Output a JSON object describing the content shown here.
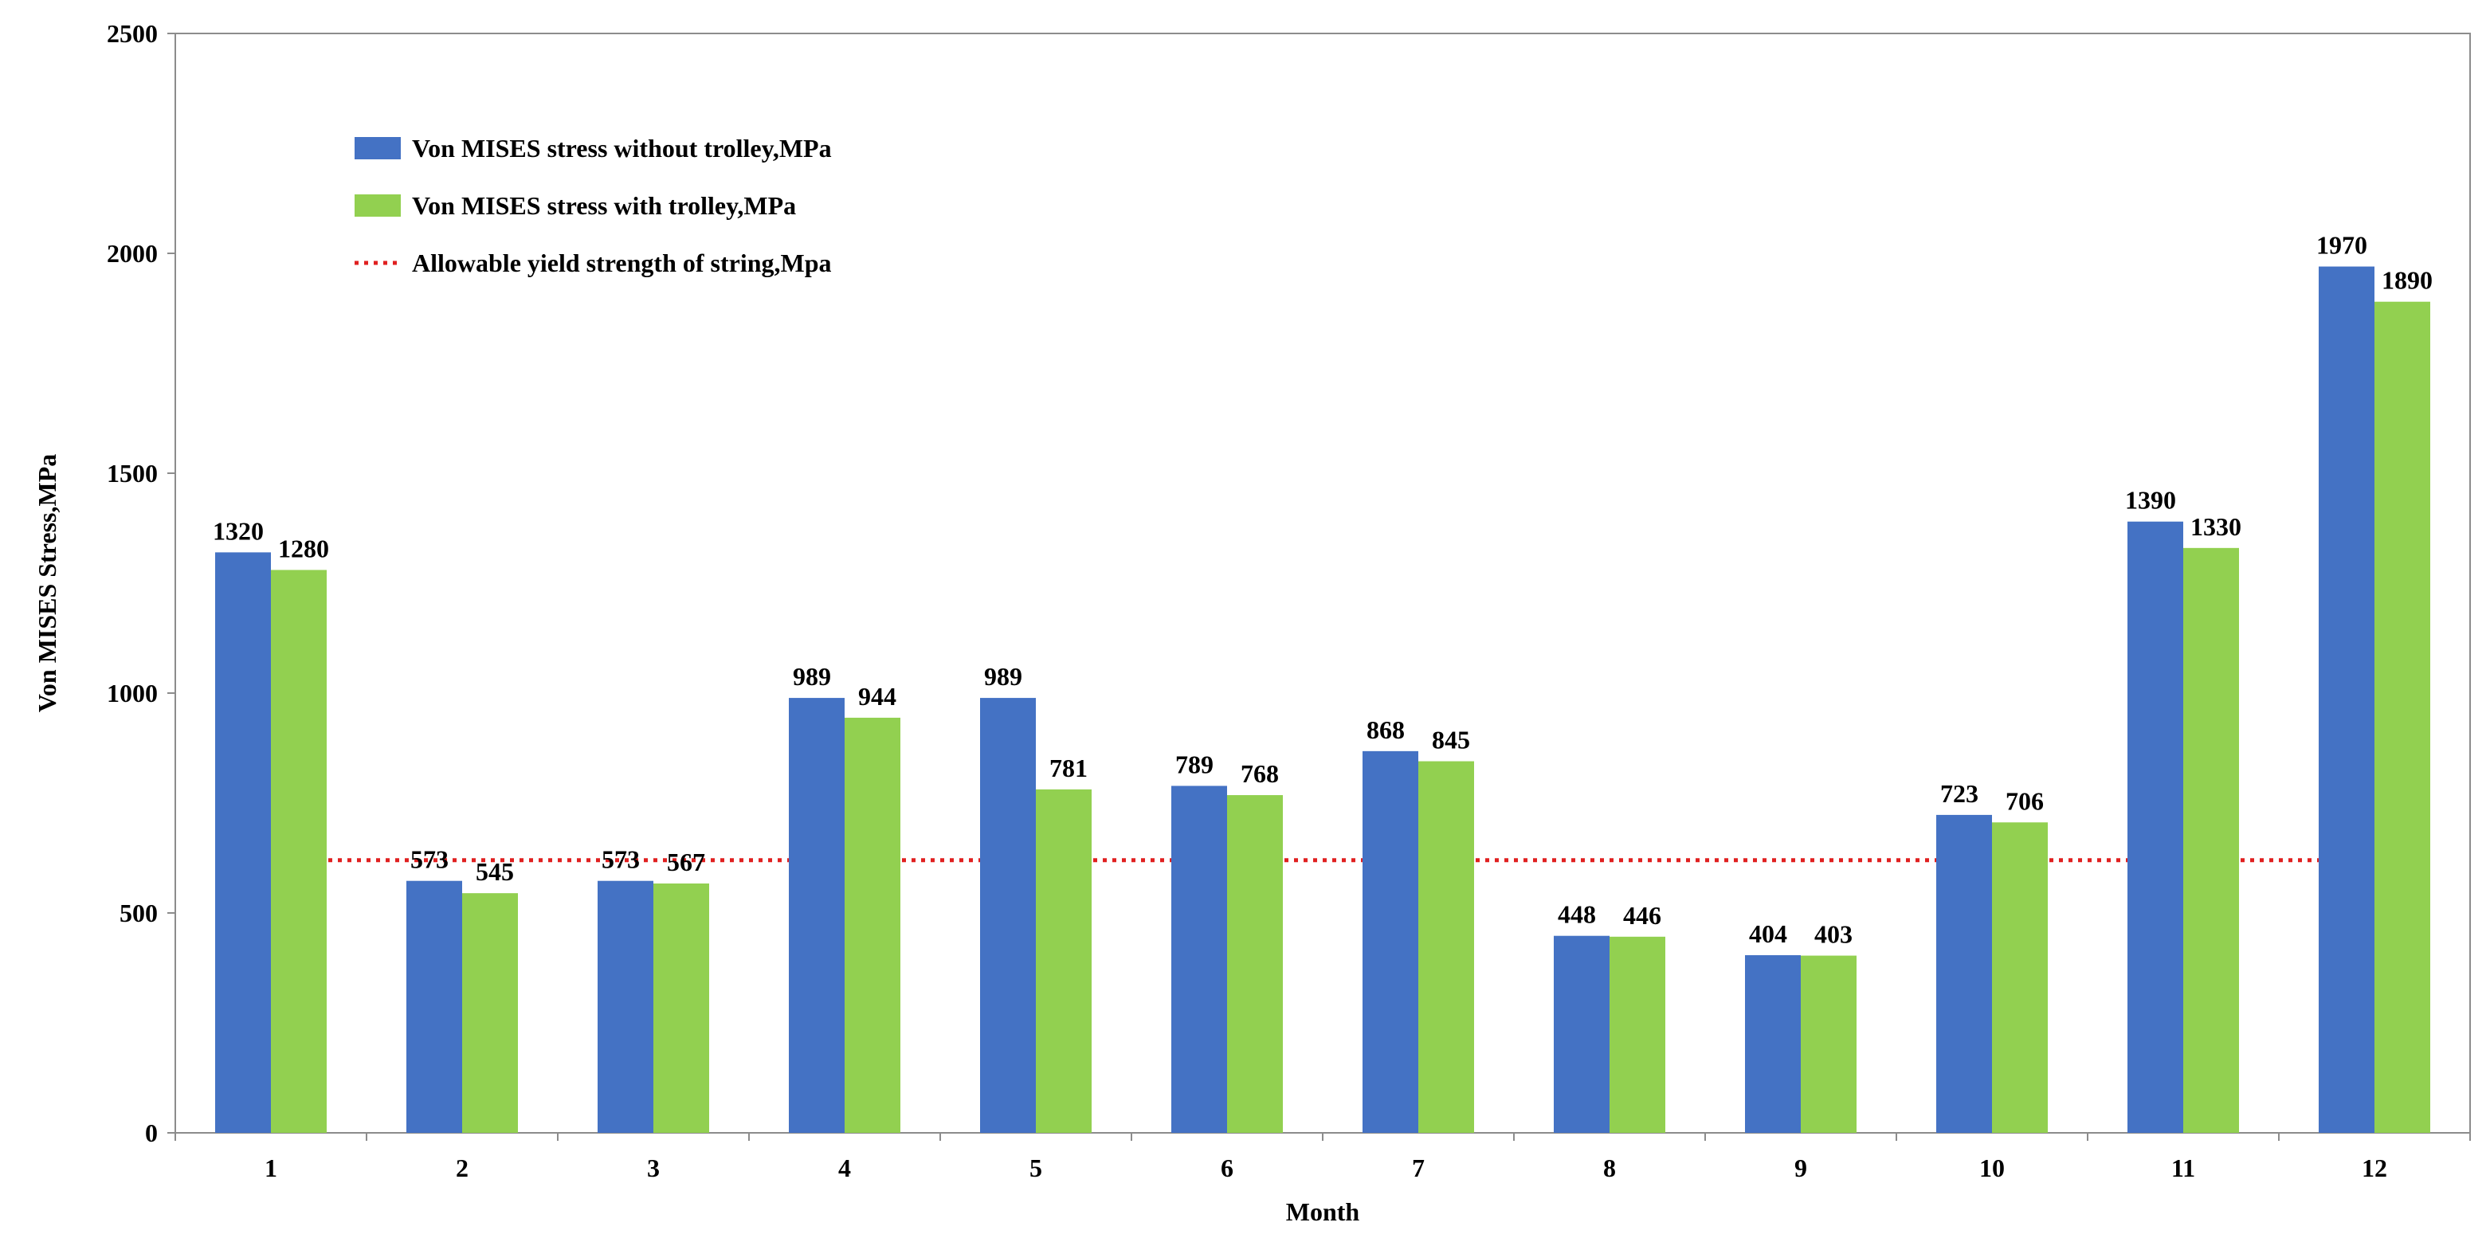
{
  "chart_data": {
    "type": "bar",
    "categories": [
      "1",
      "2",
      "3",
      "4",
      "5",
      "6",
      "7",
      "8",
      "9",
      "10",
      "11",
      "12"
    ],
    "series": [
      {
        "name": "Von MISES stress without trolley,MPa",
        "color": "#4472C4",
        "values": [
          1320,
          573,
          573,
          989,
          989,
          789,
          868,
          448,
          404,
          723,
          1390,
          1970
        ]
      },
      {
        "name": "Von MISES stress with trolley,MPa",
        "color": "#92D050",
        "values": [
          1280,
          545,
          567,
          944,
          781,
          768,
          845,
          446,
          403,
          706,
          1330,
          1890
        ]
      }
    ],
    "reference_line": {
      "name": "Allowable yield strength of string,Mpa",
      "color": "#E02020",
      "style": "dotted",
      "value": 620
    },
    "title": "",
    "xlabel": "Month",
    "ylabel": "Von MISES Stress,MPa",
    "ylim": [
      0,
      2500
    ],
    "yticks": [
      0,
      500,
      1000,
      1500,
      2000,
      2500
    ],
    "grid": false,
    "legend_position": "top-left"
  }
}
